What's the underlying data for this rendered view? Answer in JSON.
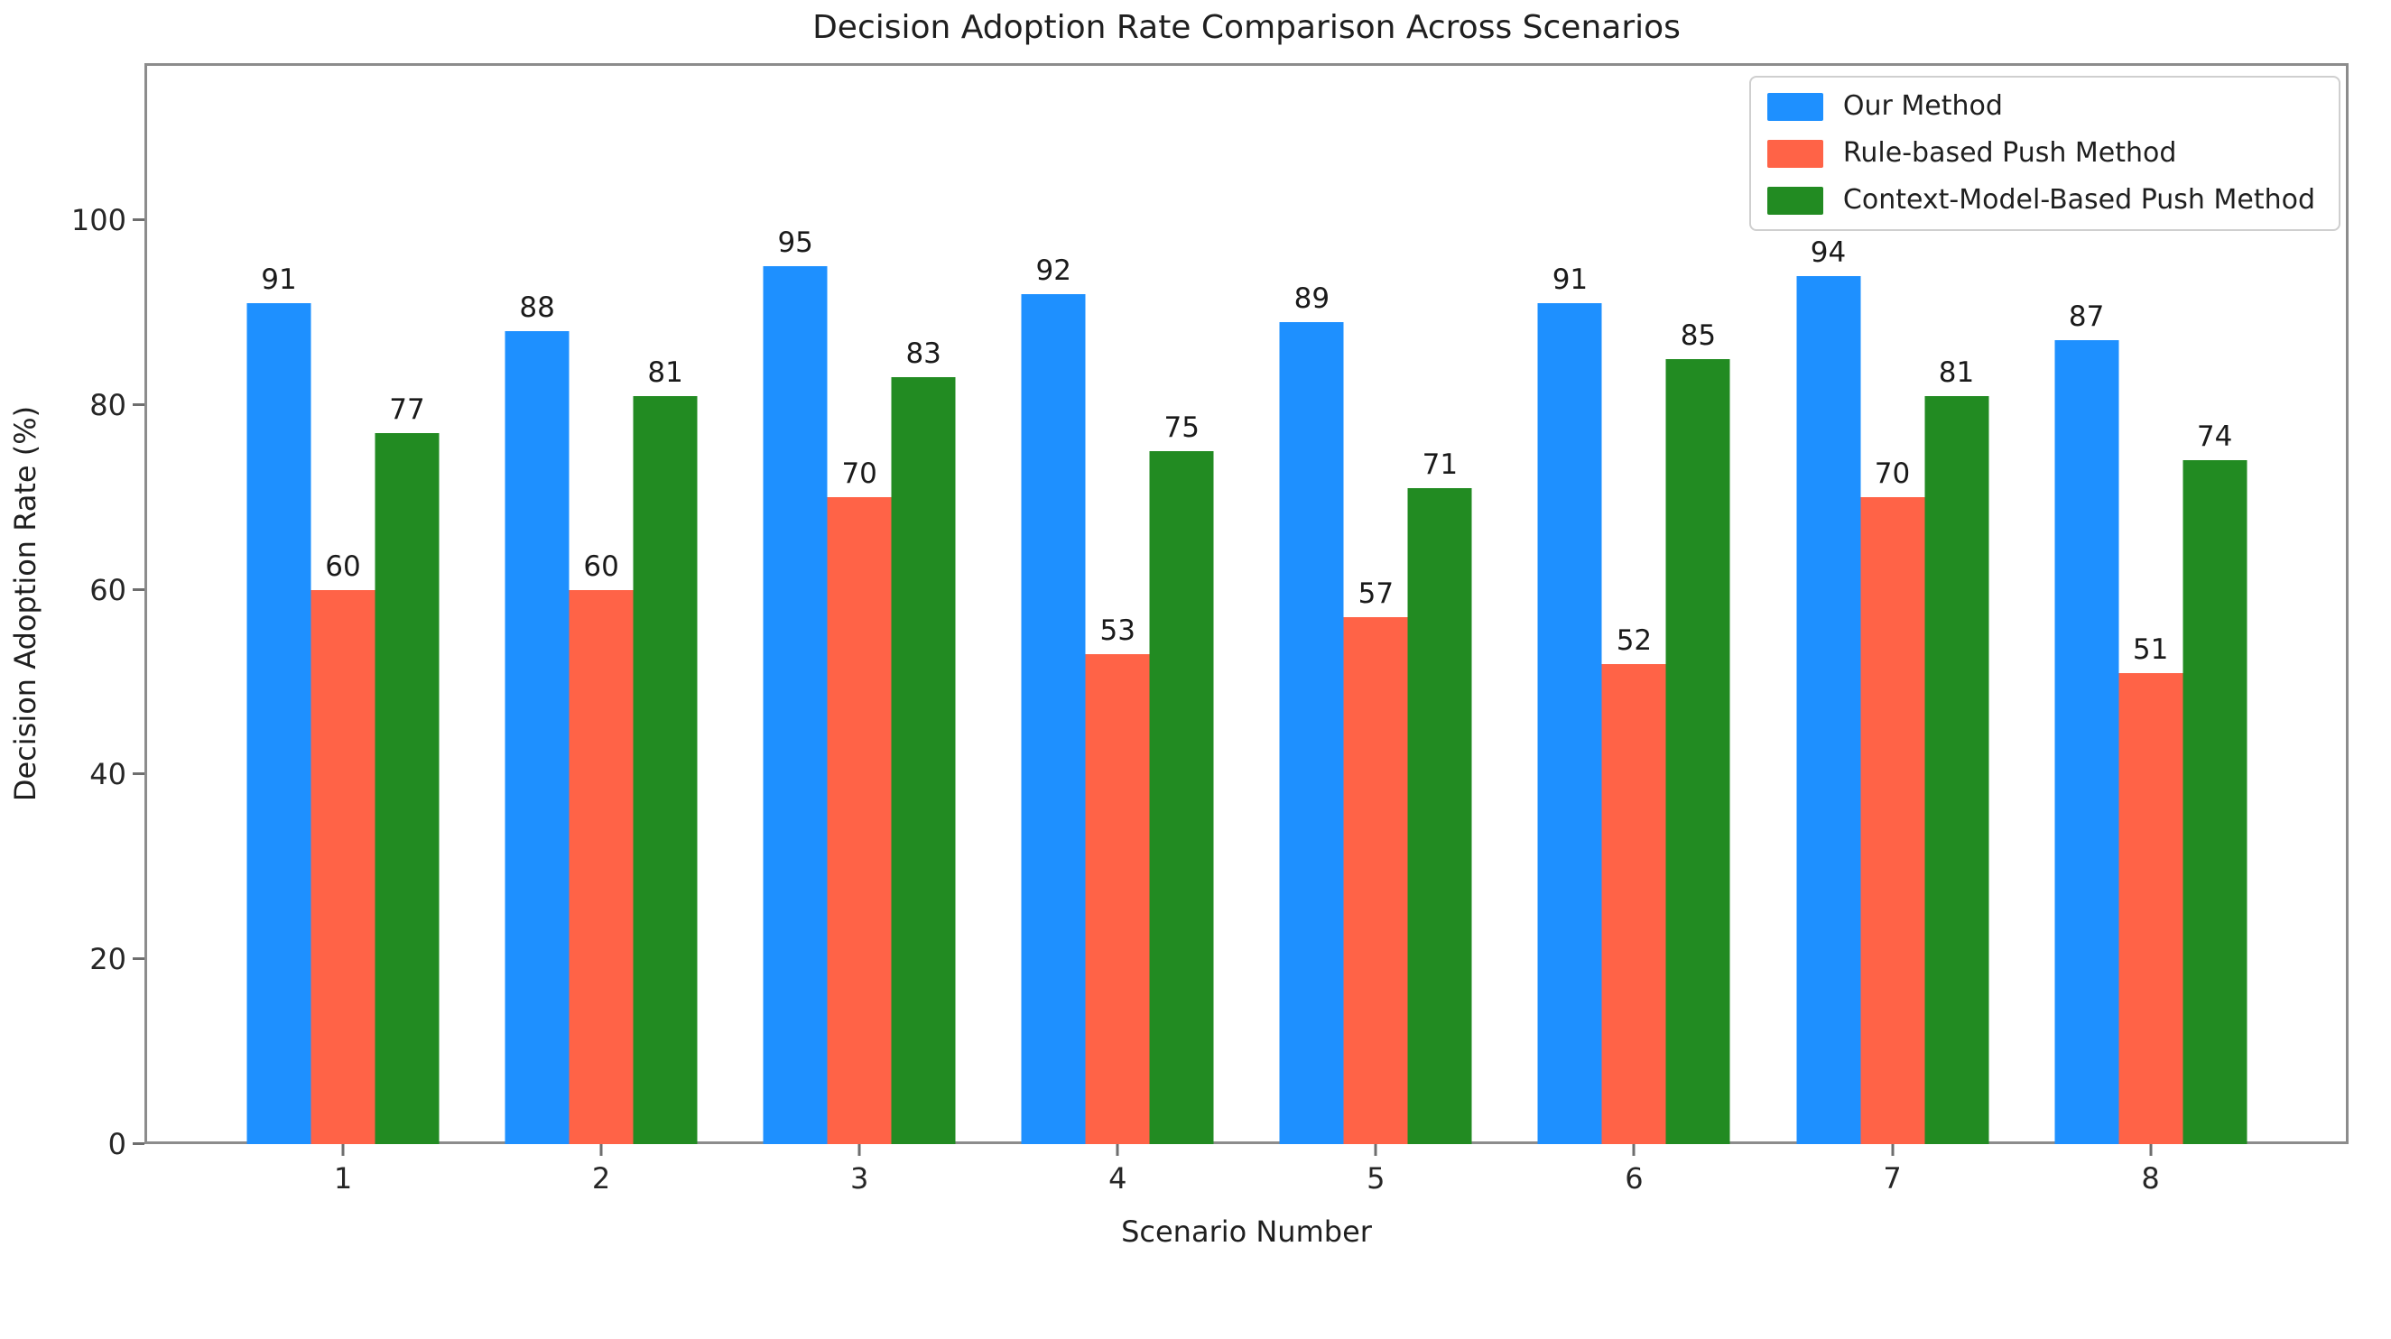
{
  "chart_data": {
    "type": "bar",
    "title": "Decision Adoption Rate Comparison Across Scenarios",
    "xlabel": "Scenario Number",
    "ylabel": "Decision Adoption Rate (%)",
    "categories": [
      "1",
      "2",
      "3",
      "4",
      "5",
      "6",
      "7",
      "8"
    ],
    "series": [
      {
        "name": "Our Method",
        "color": "#1E90FF",
        "values": [
          91,
          88,
          95,
          92,
          89,
          91,
          94,
          87
        ]
      },
      {
        "name": "Rule-based Push Method",
        "color": "#FF6347",
        "values": [
          60,
          60,
          70,
          53,
          57,
          52,
          70,
          51
        ]
      },
      {
        "name": "Context-Model-Based Push Method",
        "color": "#228B22",
        "values": [
          77,
          81,
          83,
          75,
          71,
          85,
          81,
          74
        ]
      }
    ],
    "yticks": [
      0,
      20,
      40,
      60,
      80,
      100
    ],
    "ylim": [
      0,
      117
    ],
    "bar_value_labels": true,
    "legend_position": "upper right",
    "grid": false,
    "axis_color": "#8c8c8c",
    "text_color": "#1a1a1a"
  }
}
